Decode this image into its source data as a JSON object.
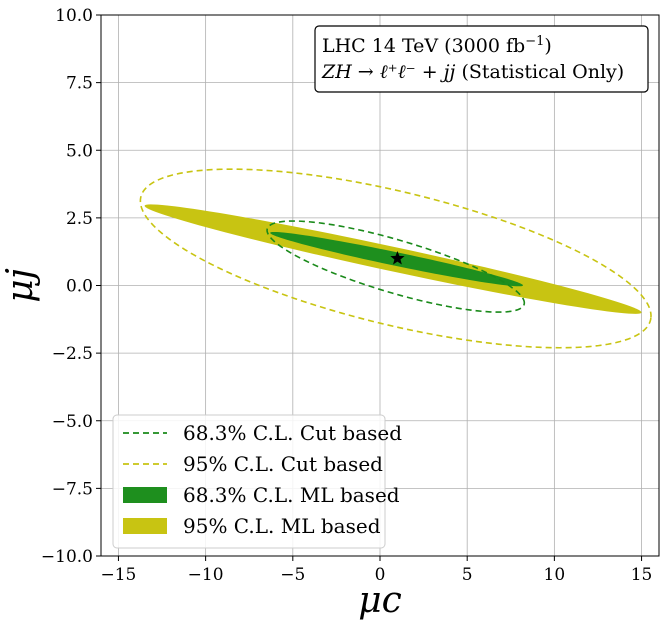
{
  "chart_data": {
    "type": "contour",
    "title": "",
    "xlabel": "μc",
    "ylabel": "μj",
    "xlim": [
      -16,
      16
    ],
    "ylim": [
      -10,
      10
    ],
    "xticks": [
      -15,
      -10,
      -5,
      0,
      5,
      10,
      15
    ],
    "yticks": [
      -10.0,
      -7.5,
      -5.0,
      -2.5,
      0.0,
      2.5,
      5.0,
      7.5,
      10.0
    ],
    "xtick_labels": [
      "−15",
      "−10",
      "−5",
      "0",
      "5",
      "10",
      "15"
    ],
    "ytick_labels": [
      "−10.0",
      "−7.5",
      "−5.0",
      "−2.5",
      "0.0",
      "2.5",
      "5.0",
      "7.5",
      "10.0"
    ],
    "grid": true,
    "annotation": {
      "line1": "LHC 14 TeV (3000 fb",
      "line1_sup": "−1",
      "line1_end": ")",
      "line2_math": "ZH → ℓ⁺ℓ⁻ + jj",
      "line2_text": " (Statistical Only)"
    },
    "best_fit": {
      "x": 1.0,
      "y": 1.0,
      "marker": "star",
      "color": "#000000"
    },
    "series": [
      {
        "name": "95% C.L. ML based",
        "kind": "filled_ellipse",
        "color": "#c8c412",
        "endpoints": [
          [
            -13.5,
            2.95
          ],
          [
            15.0,
            -1.0
          ]
        ],
        "half_width": 0.45
      },
      {
        "name": "68.3% C.L. ML based",
        "kind": "filled_ellipse",
        "color": "#1e8f1e",
        "endpoints": [
          [
            -6.3,
            1.95
          ],
          [
            8.2,
            0.0
          ]
        ],
        "half_width": 0.25
      },
      {
        "name": "95% C.L. Cut based",
        "kind": "dashed_ellipse",
        "color": "#c8c412",
        "center": [
          0.9,
          1.0
        ],
        "semi_major": 14.8,
        "semi_minor": 2.5,
        "angle_deg": -8.5
      },
      {
        "name": "68.3% C.L. Cut based",
        "kind": "dashed_ellipse",
        "color": "#1a8a1a",
        "center": [
          0.9,
          0.7
        ],
        "semi_major": 7.5,
        "semi_minor": 1.0,
        "angle_deg": -10.5
      }
    ],
    "legend": {
      "position": "lower-left",
      "entries": [
        {
          "label": "68.3% C.L. Cut based",
          "style": "dashed",
          "color": "#1a8a1a"
        },
        {
          "label": "95% C.L. Cut based",
          "style": "dashed",
          "color": "#c8c412"
        },
        {
          "label": "68.3% C.L. ML based",
          "style": "patch",
          "color": "#1e8f1e"
        },
        {
          "label": "95% C.L. ML based",
          "style": "patch",
          "color": "#c8c412"
        }
      ]
    }
  }
}
